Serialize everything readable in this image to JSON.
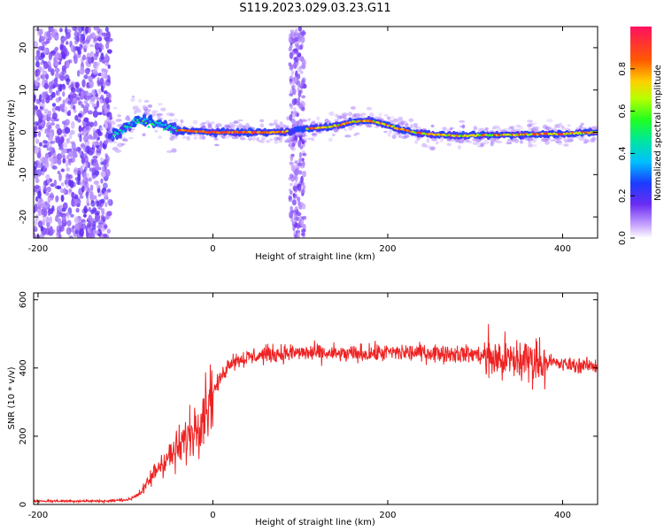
{
  "title": "S119.2023.029.03.23.G11",
  "chart_data": [
    {
      "type": "heatmap",
      "name": "spectrogram",
      "xlabel": "Height of straight line (km)",
      "ylabel": "Frequency (Hz)",
      "xlim": [
        -205,
        440
      ],
      "ylim": [
        -25,
        25
      ],
      "xticks": [
        -200,
        0,
        200,
        400
      ],
      "yticks": [
        -20,
        -10,
        0,
        10,
        20
      ],
      "colorbar": {
        "label": "Normalized spectral amplitude",
        "range": [
          0.0,
          1.0
        ],
        "ticks": [
          0.0,
          0.2,
          0.4,
          0.6,
          0.8
        ]
      },
      "ridge": {
        "x": [
          -115,
          -100,
          -85,
          -70,
          -55,
          -40,
          -20,
          0,
          40,
          80,
          100,
          120,
          140,
          160,
          180,
          195,
          210,
          230,
          250,
          280,
          320,
          360,
          400,
          440
        ],
        "y": [
          -1,
          1,
          3,
          2.5,
          1.5,
          0.5,
          0.3,
          0,
          0,
          0,
          0.8,
          1,
          1.5,
          2.5,
          2.8,
          2,
          1,
          0,
          -0.5,
          -0.8,
          -0.7,
          -0.5,
          -0.3,
          0
        ]
      }
    },
    {
      "type": "line",
      "name": "snr",
      "xlabel": "Height of straight line (km)",
      "ylabel": "SNR (10 * v/v)",
      "xlim": [
        -205,
        440
      ],
      "ylim": [
        0,
        620
      ],
      "xticks": [
        -200,
        0,
        200,
        400
      ],
      "yticks": [
        0,
        200,
        400,
        600
      ],
      "color": "#ee2222",
      "envelope": {
        "x": [
          -205,
          -120,
          -95,
          -80,
          -60,
          -40,
          -20,
          0,
          20,
          60,
          100,
          150,
          200,
          250,
          300,
          320,
          340,
          360,
          380,
          400,
          440
        ],
        "y": [
          10,
          10,
          15,
          40,
          120,
          160,
          230,
          330,
          420,
          440,
          445,
          440,
          445,
          445,
          440,
          430,
          420,
          425,
          420,
          410,
          405
        ]
      }
    }
  ]
}
